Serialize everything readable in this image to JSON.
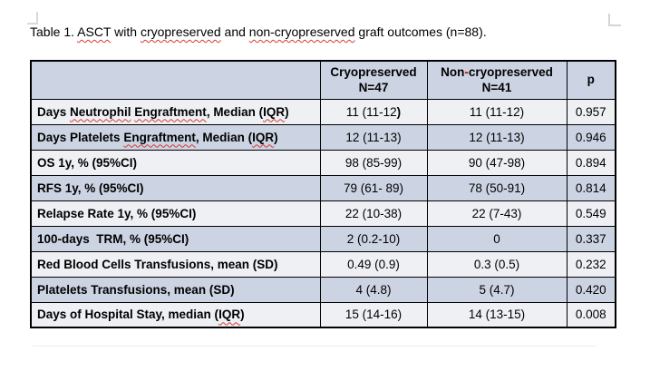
{
  "caption_segments": [
    {
      "t": "Table 1. "
    },
    {
      "t": "ASCT",
      "sp": true
    },
    {
      "t": " with "
    },
    {
      "t": "cryopreserved",
      "sp": true
    },
    {
      "t": " and "
    },
    {
      "t": "non-cryopreserved",
      "sp": true
    },
    {
      "t": " graft outcomes (n=88)."
    }
  ],
  "table": {
    "header": {
      "empty": "",
      "cryo_line1": "Cryopreserved",
      "cryo_line2": "N=47",
      "noncryo_line1_segments": [
        {
          "t": "Non"
        },
        {
          "t": "-",
          "red": true
        },
        {
          "t": "cryopreserved"
        }
      ],
      "noncryo_line2": "N=41",
      "p_label": "p"
    },
    "rows": [
      {
        "label_segments": [
          {
            "t": "Days "
          },
          {
            "t": "Neutrophil",
            "sp": true
          },
          {
            "t": " "
          },
          {
            "t": "Engraftment",
            "sp": true
          },
          {
            "t": ", Median ("
          },
          {
            "t": "IQR",
            "sp": true
          },
          {
            "t": ")"
          }
        ],
        "cryo_segments": [
          {
            "t": "11 (11-12"
          },
          {
            "t": ")",
            "b": true
          }
        ],
        "noncryo": "11 (11-12)",
        "p": "0.957"
      },
      {
        "label_segments": [
          {
            "t": "Days Platelets "
          },
          {
            "t": "Engraftment",
            "sp": true
          },
          {
            "t": ", Median ("
          },
          {
            "t": "IQR",
            "sp": true
          },
          {
            "t": ")"
          }
        ],
        "cryo": "12 (11-13)",
        "noncryo": "12 (11-13)",
        "p": "0.946"
      },
      {
        "label_segments": [
          {
            "t": "OS 1y, % (95%CI)"
          }
        ],
        "cryo": "98 (85-99)",
        "noncryo": "90 (47-98)",
        "p": "0.894"
      },
      {
        "label_segments": [
          {
            "t": "RFS 1y, % (95%CI)"
          }
        ],
        "cryo": "79 (61- 89)",
        "noncryo": "78 (50-91)",
        "p": "0.814"
      },
      {
        "label_segments": [
          {
            "t": "Relapse Rate 1y, % (95%CI)"
          }
        ],
        "cryo": "22 (10-38)",
        "noncryo": "22 (7-43)",
        "p": "0.549"
      },
      {
        "label_segments": [
          {
            "t": "100-days  TRM, % (95%CI)"
          }
        ],
        "cryo": "2 (0.2-10)",
        "noncryo": "0",
        "p": "0.337"
      },
      {
        "label_segments": [
          {
            "t": "Red Blood Cells Transfusions, mean (SD)"
          }
        ],
        "cryo": "0.49 (0.9)",
        "noncryo": "0.3 (0.5)",
        "p": "0.232"
      },
      {
        "label_segments": [
          {
            "t": "Platelets Transfusions, mean (SD)"
          }
        ],
        "cryo": "4 (4.8)",
        "noncryo": "5 (4.7)",
        "p": "0.420"
      },
      {
        "label_segments": [
          {
            "t": "Days of Hospital Stay, median ("
          },
          {
            "t": "IQR",
            "sp": true
          },
          {
            "t": ")"
          }
        ],
        "cryo": "15 (14-16)",
        "noncryo": "14 (13-15)",
        "p": "0.008"
      }
    ]
  },
  "colors": {
    "row_shaded": "#ccd4e3",
    "row_light": "#eef0f4",
    "spellcheck_red": "#d83931",
    "hyphen_red": "#cc0000",
    "table_border": "#000000"
  }
}
